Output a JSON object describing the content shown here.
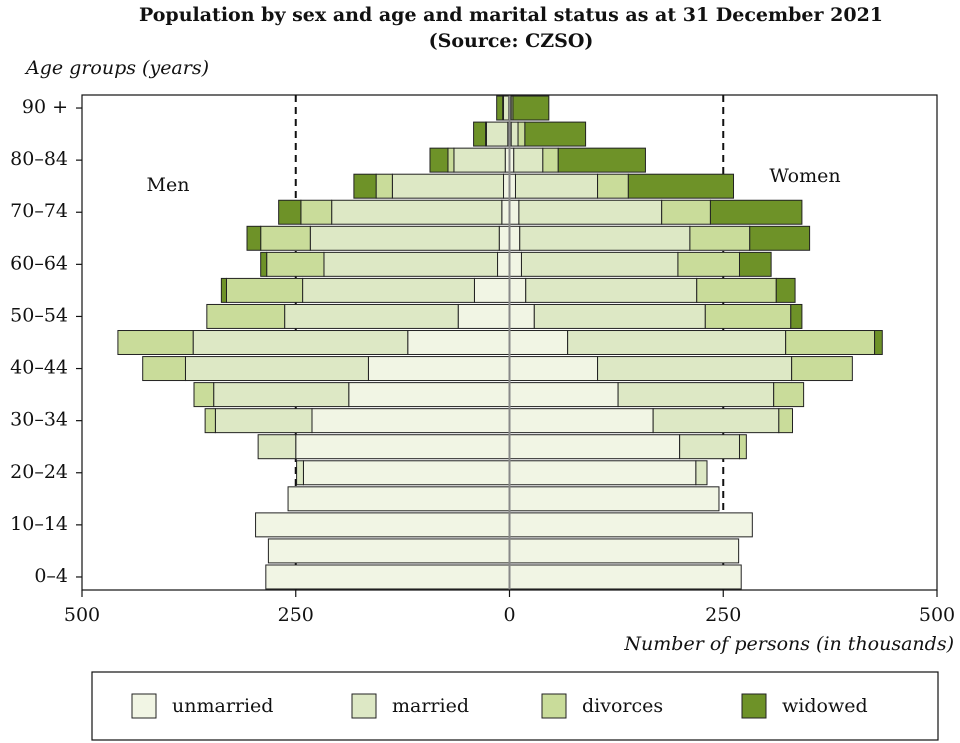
{
  "chart_data": {
    "type": "pyramid",
    "title": "Population by sex and age and marital status as at 31 December 2021",
    "subtitle": "(Source: CZSO)",
    "y_axis_label": "Age groups (years)",
    "x_axis_label": "Number of persons (in thousands)",
    "groups": [
      "Men",
      "Women"
    ],
    "categories": [
      "0–4",
      null,
      "10–14",
      null,
      "20–24",
      null,
      "30–34",
      null,
      "40–44",
      null,
      "50–54",
      null,
      "60–64",
      null,
      "70–74",
      null,
      "80–84",
      null,
      "90 +"
    ],
    "series": [
      {
        "name": "unmarried",
        "color": "#f1f5e4",
        "values": [
          [
            285,
            282,
            297,
            259,
            241,
            250,
            231,
            188,
            165,
            119,
            60,
            41,
            14,
            12,
            9,
            7,
            5,
            2,
            1
          ],
          [
            271,
            268,
            284,
            245,
            218,
            199,
            168,
            127,
            103,
            68,
            29,
            19,
            14,
            12,
            11,
            7,
            5,
            2,
            1
          ]
        ]
      },
      {
        "name": "married",
        "color": "#dde8c5",
        "values": [
          [
            0,
            0,
            0,
            0,
            8,
            44,
            113,
            158,
            214,
            251,
            203,
            201,
            203,
            221,
            199,
            130,
            60,
            25,
            6
          ],
          [
            0,
            0,
            0,
            0,
            13,
            70,
            147,
            182,
            227,
            255,
            200,
            200,
            183,
            199,
            167,
            96,
            34,
            8,
            1
          ]
        ]
      },
      {
        "name": "divorces",
        "color": "#c9dc9a",
        "values": [
          [
            0,
            0,
            0,
            0,
            0,
            0,
            12,
            23,
            50,
            88,
            91,
            89,
            67,
            58,
            36,
            19,
            7,
            1,
            1
          ],
          [
            0,
            0,
            0,
            0,
            0,
            8,
            16,
            35,
            71,
            104,
            100,
            93,
            72,
            70,
            57,
            36,
            18,
            8,
            2
          ]
        ]
      },
      {
        "name": "widowed",
        "color": "#6e9228",
        "values": [
          [
            0,
            0,
            0,
            0,
            0,
            0,
            0,
            0,
            0,
            0,
            0,
            6,
            7,
            16,
            26,
            26,
            21,
            14,
            7
          ],
          [
            0,
            0,
            0,
            0,
            0,
            0,
            0,
            0,
            0,
            9,
            13,
            22,
            37,
            70,
            107,
            123,
            102,
            71,
            42
          ]
        ]
      }
    ],
    "xlim": [
      -500,
      500
    ],
    "xticks": [
      {
        "value": -500,
        "label": "500"
      },
      {
        "value": -250,
        "label": "250"
      },
      0,
      250,
      500
    ],
    "reference_lines": [
      -250,
      250
    ]
  }
}
